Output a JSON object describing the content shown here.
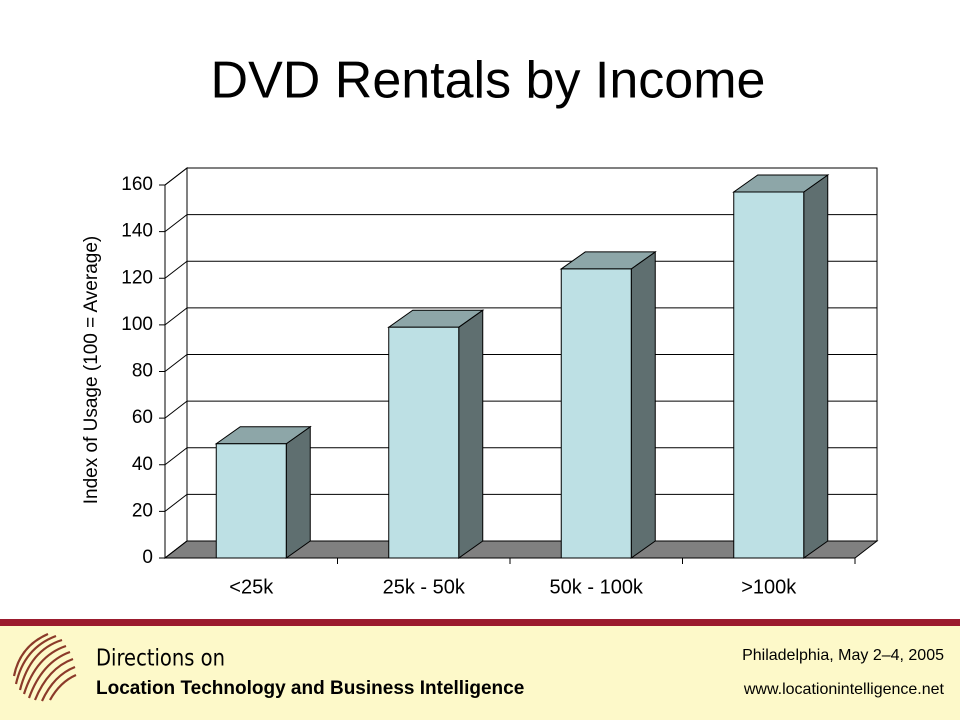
{
  "chart_data": {
    "type": "bar3d",
    "title": "DVD Rentals by Income",
    "y_label": "Index of Usage (100 = Average)",
    "categories": [
      "<25k",
      "25k - 50k",
      "50k - 100k",
      ">100k"
    ],
    "values": [
      49,
      99,
      124,
      157
    ],
    "color": "#bde0e4",
    "ylim": [
      0,
      160
    ],
    "yticks": [
      0,
      20,
      40,
      60,
      80,
      100,
      120,
      140,
      160
    ],
    "grid": true
  },
  "footer": {
    "brand": "Directions on",
    "tagline": "Location Technology and Business Intelligence",
    "event": "Philadelphia, May 2–4, 2005",
    "url": "www.locationintelligence.net"
  }
}
